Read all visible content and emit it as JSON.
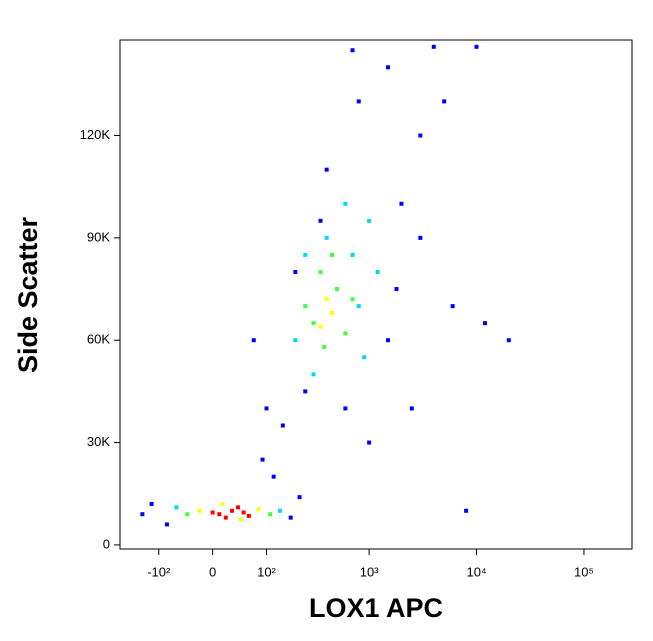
{
  "chart_data": {
    "type": "scatter",
    "x_label": "LOX1 APC",
    "y_label": "Side Scatter",
    "xscale": "logicle",
    "xlim": [
      -250,
      280000
    ],
    "xticks": [
      {
        "value": -100,
        "label": "-10²"
      },
      0,
      {
        "value": 100,
        "label": "10²"
      },
      {
        "value": 1000,
        "label": "10³"
      },
      {
        "value": 10000,
        "label": "10⁴"
      },
      {
        "value": 100000,
        "label": "10⁵"
      }
    ],
    "ylim": [
      -1200,
      148000
    ],
    "yticks": [
      0,
      {
        "value": 30000,
        "label": "30K"
      },
      {
        "value": 60000,
        "label": "60K"
      },
      {
        "value": 90000,
        "label": "90K"
      },
      {
        "value": 120000,
        "label": "120K"
      }
    ],
    "series": [
      {
        "color": "#0000ff",
        "x": [
          -120,
          -80,
          180,
          120,
          150,
          250,
          200,
          1500,
          2000,
          3000,
          5000,
          1500,
          800,
          400,
          3000,
          6000,
          8000,
          20000,
          12000,
          2500,
          1000,
          100,
          70,
          4000,
          10000,
          700,
          -150,
          220,
          90,
          350,
          1800,
          600
        ],
        "y": [
          12000,
          6000,
          8000,
          20000,
          35000,
          45000,
          80000,
          60000,
          100000,
          120000,
          130000,
          140000,
          130000,
          110000,
          90000,
          70000,
          10000,
          60000,
          65000,
          40000,
          30000,
          40000,
          60000,
          146000,
          146000,
          145000,
          9000,
          14000,
          25000,
          95000,
          75000,
          40000
        ]
      },
      {
        "color": "#00d8ff",
        "x": [
          -60,
          140,
          200,
          800,
          400,
          700,
          300,
          1000,
          600,
          1200,
          250,
          900
        ],
        "y": [
          11000,
          10000,
          60000,
          70000,
          90000,
          85000,
          50000,
          95000,
          100000,
          80000,
          85000,
          55000
        ]
      },
      {
        "color": "#40ff40",
        "x": [
          -40,
          110,
          300,
          500,
          350,
          600,
          250,
          380,
          450,
          700
        ],
        "y": [
          9000,
          9000,
          65000,
          75000,
          80000,
          62000,
          70000,
          58000,
          85000,
          72000
        ]
      },
      {
        "color": "#ffff00",
        "x": [
          -20,
          80,
          15,
          45,
          400,
          450,
          350
        ],
        "y": [
          10000,
          10500,
          12000,
          7500,
          72000,
          68000,
          64000
        ]
      },
      {
        "color": "#ff0000",
        "x": [
          10,
          30,
          50,
          20,
          40,
          0,
          60
        ],
        "y": [
          9000,
          10000,
          9500,
          8000,
          11000,
          9500,
          8500
        ]
      }
    ]
  }
}
